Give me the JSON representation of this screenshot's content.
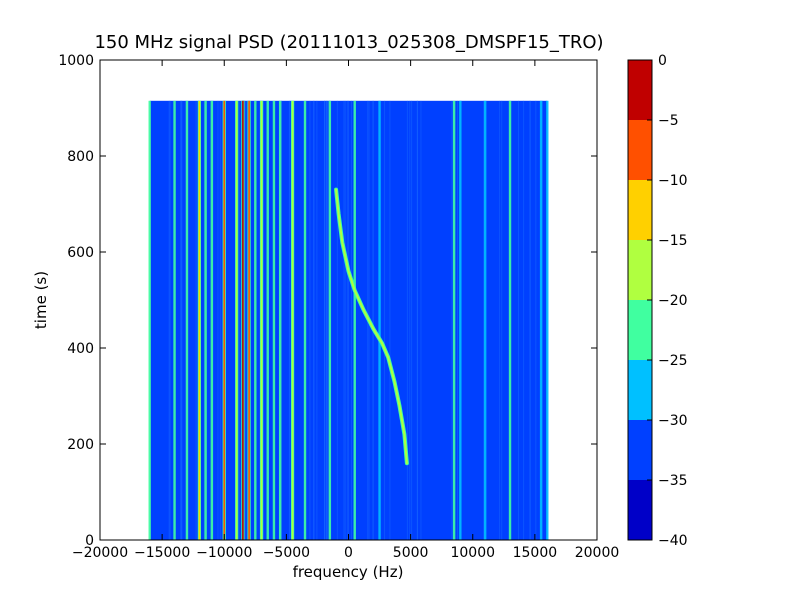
{
  "chart_data": {
    "type": "heatmap",
    "title": "150 MHz signal PSD (20111013_025308_DMSPF15_TRO)",
    "xlabel": "frequency (Hz)",
    "ylabel": "time (s)",
    "xlim": [
      -20000,
      20000
    ],
    "ylim": [
      0,
      1000
    ],
    "xticks": [
      -20000,
      -15000,
      -10000,
      -5000,
      0,
      5000,
      10000,
      15000,
      20000
    ],
    "yticks": [
      0,
      200,
      400,
      600,
      800,
      1000
    ],
    "data_extent": {
      "x": [
        -16000,
        16000
      ],
      "y": [
        0,
        915
      ]
    },
    "background_level": -35,
    "colorbar": {
      "levels": [
        -40,
        -35,
        -30,
        -25,
        -20,
        -15,
        -10,
        -5,
        0
      ],
      "colors": [
        "#0000c8",
        "#0040ff",
        "#00c0ff",
        "#40ffa0",
        "#b0ff40",
        "#ffd000",
        "#ff5000",
        "#c00000"
      ]
    },
    "bright_lines": [
      {
        "freq": -12000,
        "level": -15
      },
      {
        "freq": -10000,
        "level": -10
      },
      {
        "freq": -9000,
        "level": -20
      },
      {
        "freq": -8500,
        "level": -5
      },
      {
        "freq": -8000,
        "level": -10
      },
      {
        "freq": -7000,
        "level": -20
      },
      {
        "freq": -4500,
        "level": -20
      }
    ],
    "faint_lines": [
      {
        "freq": -16000,
        "level": -25
      },
      {
        "freq": -14000,
        "level": -25
      },
      {
        "freq": -13000,
        "level": -25
      },
      {
        "freq": -11500,
        "level": -25
      },
      {
        "freq": -11000,
        "level": -25
      },
      {
        "freq": -7500,
        "level": -25
      },
      {
        "freq": -6500,
        "level": -25
      },
      {
        "freq": -6000,
        "level": -25
      },
      {
        "freq": -5500,
        "level": -25
      },
      {
        "freq": -3500,
        "level": -25
      },
      {
        "freq": -1500,
        "level": -25
      },
      {
        "freq": 500,
        "level": -25
      },
      {
        "freq": 2500,
        "level": -30
      },
      {
        "freq": 8500,
        "level": -25
      },
      {
        "freq": 9000,
        "level": -30
      },
      {
        "freq": 11000,
        "level": -30
      },
      {
        "freq": 13000,
        "level": -25
      },
      {
        "freq": 15500,
        "level": -30
      },
      {
        "freq": 16000,
        "level": -30
      }
    ],
    "doppler_trace": {
      "level": -20,
      "points": [
        [
          -1000,
          730
        ],
        [
          -800,
          680
        ],
        [
          -500,
          620
        ],
        [
          0,
          560
        ],
        [
          500,
          520
        ],
        [
          1200,
          480
        ],
        [
          2000,
          440
        ],
        [
          2700,
          410
        ],
        [
          3200,
          380
        ],
        [
          3700,
          330
        ],
        [
          4100,
          280
        ],
        [
          4500,
          220
        ],
        [
          4700,
          160
        ]
      ]
    }
  }
}
